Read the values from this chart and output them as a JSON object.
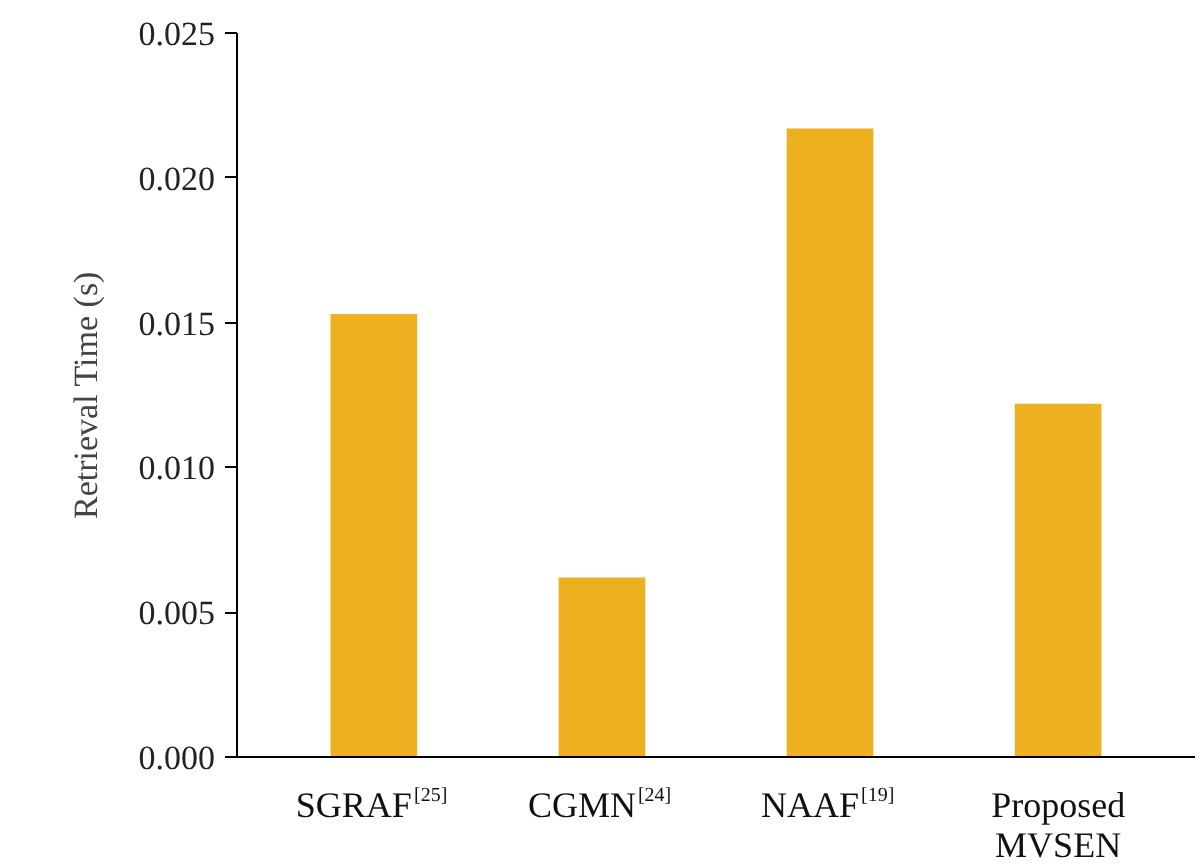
{
  "chart_data": {
    "type": "bar",
    "ylabel": "Retrieval Time (s)",
    "categories": [
      "SGRAF$^{[25]}$",
      "CGMN$^{[24]}$",
      "NAAF$^{[19]}$",
      "Proposed\nMVSEN"
    ],
    "values": [
      0.0153,
      0.0062,
      0.0217,
      0.0122
    ],
    "color": "#ecb020",
    "ylim": [
      0,
      0.025
    ],
    "yticks": [
      {
        "value": 0,
        "label": "0.000"
      },
      {
        "value": 0.005,
        "label": "0.005"
      },
      {
        "value": 0.01,
        "label": "0.010"
      },
      {
        "value": 0.015,
        "label": "0.015"
      },
      {
        "value": 0.02,
        "label": "0.020"
      },
      {
        "value": 0.025,
        "label": "0.025"
      }
    ],
    "grid": false
  }
}
